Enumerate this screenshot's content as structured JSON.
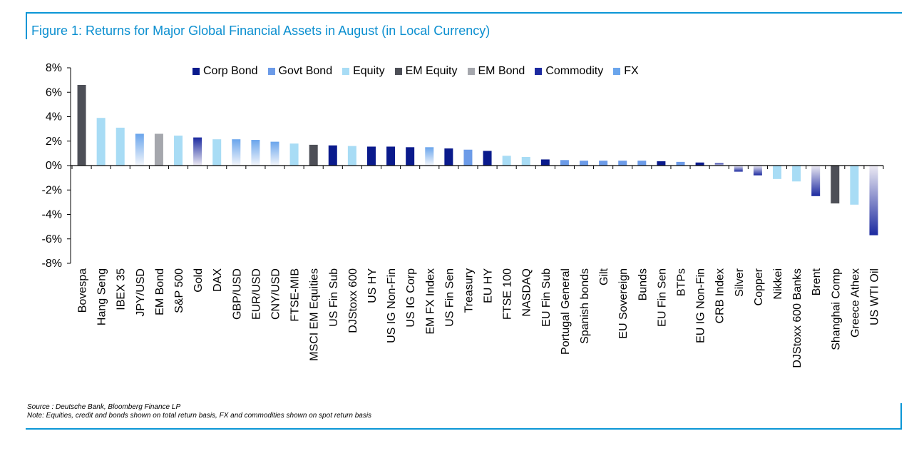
{
  "figure": {
    "title": "Figure 1: Returns for Major Global Financial Assets in August (in Local Currency)",
    "source_line": "Source : Deutsche Bank, Bloomberg Finance LP",
    "note_line": "Note: Equities, credit and bonds shown on total return basis, FX and commodities shown on spot return basis"
  },
  "legend": [
    {
      "name": "Corp Bond",
      "color": "#0a1a8c"
    },
    {
      "name": "Govt Bond",
      "color": "#6c9be8"
    },
    {
      "name": "Equity",
      "color": "#a8dcf5"
    },
    {
      "name": "EM Equity",
      "color": "#4d4f57"
    },
    {
      "name": "EM Bond",
      "color": "#a5a7ad"
    },
    {
      "name": "Commodity",
      "color": "#1c2aa0"
    },
    {
      "name": "FX",
      "color": "#6aa5ec"
    }
  ],
  "colors": {
    "Corp Bond": "#0a1a8c",
    "Govt Bond": "#6c9be8",
    "Equity": "#a8dcf5",
    "EM Equity": "#4d4f57",
    "EM Bond": "#a5a7ad",
    "Commodity": "#1c2aa0",
    "FX": "#6aa5ec",
    "accent": "#0b96d6"
  },
  "chart_data": {
    "type": "bar",
    "title": "Figure 1: Returns for Major Global Financial Assets in August (in Local Currency)",
    "xlabel": "",
    "ylabel": "",
    "ylim": [
      -8,
      8
    ],
    "yticks": [
      8,
      6,
      4,
      2,
      0,
      -2,
      -4,
      -6,
      -8
    ],
    "ytick_labels": [
      "8%",
      "6%",
      "4%",
      "2%",
      "0%",
      "-2%",
      "-4%",
      "-6%",
      "-8%"
    ],
    "grid": false,
    "legend_position": "top-center",
    "categories": [
      "Bovespa",
      "Hang Seng",
      "IBEX 35",
      "JPY/USD",
      "EM Bond",
      "S&P 500",
      "Gold",
      "DAX",
      "GBP/USD",
      "EUR/USD",
      "CNY/USD",
      "FTSE-MIB",
      "MSCI EM Equities",
      "US Fin Sub",
      "DJStoxx 600",
      "US HY",
      "US IG Non-Fin",
      "US IG Corp",
      "EM FX Index",
      "US Fin Sen",
      "Treasury",
      "EU HY",
      "FTSE 100",
      "NASDAQ",
      "EU Fin Sub",
      "Portugal General",
      "Spanish bonds",
      "Gilt",
      "EU Sovereign",
      "Bunds",
      "EU Fin Sen",
      "BTPs",
      "EU IG Non-Fin",
      "CRB Index",
      "Silver",
      "Copper",
      "Nikkei",
      "DJStoxx 600 Banks",
      "Brent",
      "Shanghai Comp",
      "Greece Athex",
      "US WTI Oil"
    ],
    "values": [
      6.6,
      3.9,
      3.1,
      2.6,
      2.6,
      2.45,
      2.3,
      2.15,
      2.15,
      2.1,
      1.95,
      1.8,
      1.7,
      1.65,
      1.6,
      1.55,
      1.55,
      1.5,
      1.5,
      1.4,
      1.3,
      1.2,
      0.8,
      0.7,
      0.5,
      0.45,
      0.4,
      0.4,
      0.4,
      0.4,
      0.35,
      0.3,
      0.25,
      0.2,
      -0.5,
      -0.8,
      -1.1,
      -1.3,
      -2.5,
      -3.1,
      -3.2,
      -5.7
    ],
    "groups": [
      "EM Equity",
      "Equity",
      "Equity",
      "FX",
      "EM Bond",
      "Equity",
      "Commodity",
      "Equity",
      "FX",
      "FX",
      "FX",
      "Equity",
      "EM Equity",
      "Corp Bond",
      "Equity",
      "Corp Bond",
      "Corp Bond",
      "Corp Bond",
      "FX",
      "Corp Bond",
      "Govt Bond",
      "Corp Bond",
      "Equity",
      "Equity",
      "Corp Bond",
      "Govt Bond",
      "Govt Bond",
      "Govt Bond",
      "Govt Bond",
      "Govt Bond",
      "Corp Bond",
      "Govt Bond",
      "Corp Bond",
      "Commodity",
      "Commodity",
      "Commodity",
      "Equity",
      "Equity",
      "Commodity",
      "EM Equity",
      "Equity",
      "Commodity"
    ]
  }
}
